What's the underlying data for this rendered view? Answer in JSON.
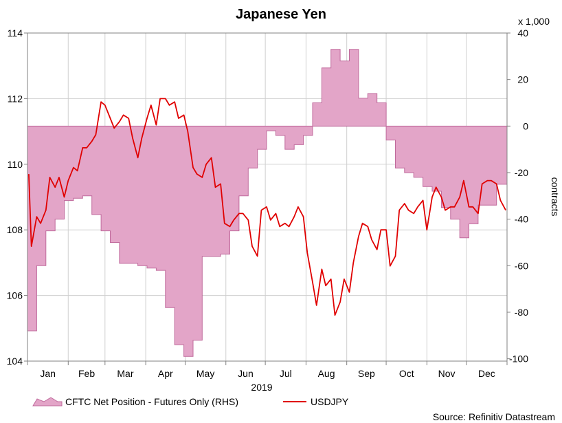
{
  "chart_data": {
    "type": "area+line",
    "title": "Japanese Yen",
    "year_label": "2019",
    "months": [
      "Jan",
      "Feb",
      "Mar",
      "Apr",
      "May",
      "Jun",
      "Jul",
      "Aug",
      "Sep",
      "Oct",
      "Nov",
      "Dec"
    ],
    "left_axis": {
      "ticks": [
        104,
        106,
        108,
        110,
        112,
        114
      ],
      "range": [
        104,
        114
      ]
    },
    "right_axis": {
      "ticks": [
        40,
        20,
        0,
        -20,
        -40,
        -60,
        -80,
        -100
      ],
      "range": [
        -101,
        40
      ],
      "multiplier_label": "x 1,000",
      "label": "contracts"
    },
    "source": "Source: Refinitiv Datastream",
    "grid": true,
    "legend_placement": "bottom",
    "colors": {
      "area_fill": "#e3a5c8",
      "area_stroke": "#c06a9c",
      "line": "#e00000",
      "grid": "#cfcfcf"
    },
    "series": [
      {
        "name": "CFTC Net Position - Futures Only (RHS)",
        "kind": "area",
        "axis": "right",
        "unit_note": "thousands of contracts, weekly",
        "x": [
          "2019-01-01",
          "2019-01-08",
          "2019-01-15",
          "2019-01-22",
          "2019-01-29",
          "2019-02-05",
          "2019-02-12",
          "2019-02-19",
          "2019-02-26",
          "2019-03-05",
          "2019-03-12",
          "2019-03-19",
          "2019-03-26",
          "2019-04-02",
          "2019-04-09",
          "2019-04-16",
          "2019-04-23",
          "2019-04-30",
          "2019-05-07",
          "2019-05-14",
          "2019-05-21",
          "2019-05-28",
          "2019-06-04",
          "2019-06-11",
          "2019-06-18",
          "2019-06-25",
          "2019-07-02",
          "2019-07-09",
          "2019-07-16",
          "2019-07-23",
          "2019-07-30",
          "2019-08-06",
          "2019-08-13",
          "2019-08-20",
          "2019-08-27",
          "2019-09-03",
          "2019-09-10",
          "2019-09-17",
          "2019-09-24",
          "2019-10-01",
          "2019-10-08",
          "2019-10-15",
          "2019-10-22",
          "2019-10-29",
          "2019-11-05",
          "2019-11-12",
          "2019-11-19",
          "2019-11-26",
          "2019-12-03",
          "2019-12-10",
          "2019-12-17",
          "2019-12-24"
        ],
        "values": [
          -88,
          -60,
          -45,
          -40,
          -32,
          -31,
          -30,
          -38,
          -45,
          -50,
          -59,
          -59,
          -60,
          -61,
          -62,
          -78,
          -94,
          -99,
          -92,
          -56,
          -56,
          -55,
          -45,
          -30,
          -18,
          -10,
          -2,
          -4,
          -10,
          -8,
          -4,
          10,
          25,
          33,
          28,
          33,
          12,
          14,
          10,
          -6,
          -18,
          -20,
          -22,
          -26,
          -28,
          -35,
          -40,
          -48,
          -42,
          -34,
          -34,
          -25
        ]
      },
      {
        "name": "USDJPY",
        "kind": "line",
        "axis": "left",
        "unit_note": "daily close",
        "x": [
          "2019-01-02",
          "2019-01-04",
          "2019-01-08",
          "2019-01-11",
          "2019-01-15",
          "2019-01-18",
          "2019-01-22",
          "2019-01-25",
          "2019-01-29",
          "2019-02-01",
          "2019-02-05",
          "2019-02-08",
          "2019-02-12",
          "2019-02-15",
          "2019-02-19",
          "2019-02-22",
          "2019-02-26",
          "2019-03-01",
          "2019-03-05",
          "2019-03-08",
          "2019-03-12",
          "2019-03-15",
          "2019-03-19",
          "2019-03-22",
          "2019-03-26",
          "2019-03-29",
          "2019-04-02",
          "2019-04-05",
          "2019-04-09",
          "2019-04-12",
          "2019-04-16",
          "2019-04-19",
          "2019-04-23",
          "2019-04-26",
          "2019-04-30",
          "2019-05-03",
          "2019-05-07",
          "2019-05-10",
          "2019-05-14",
          "2019-05-17",
          "2019-05-21",
          "2019-05-24",
          "2019-05-28",
          "2019-05-31",
          "2019-06-04",
          "2019-06-07",
          "2019-06-11",
          "2019-06-14",
          "2019-06-18",
          "2019-06-21",
          "2019-06-25",
          "2019-06-28",
          "2019-07-02",
          "2019-07-05",
          "2019-07-09",
          "2019-07-12",
          "2019-07-16",
          "2019-07-19",
          "2019-07-23",
          "2019-07-26",
          "2019-07-30",
          "2019-08-02",
          "2019-08-06",
          "2019-08-09",
          "2019-08-13",
          "2019-08-16",
          "2019-08-20",
          "2019-08-23",
          "2019-08-27",
          "2019-08-30",
          "2019-09-03",
          "2019-09-06",
          "2019-09-10",
          "2019-09-13",
          "2019-09-17",
          "2019-09-20",
          "2019-09-24",
          "2019-09-27",
          "2019-10-01",
          "2019-10-04",
          "2019-10-08",
          "2019-10-11",
          "2019-10-15",
          "2019-10-18",
          "2019-10-22",
          "2019-10-25",
          "2019-10-29",
          "2019-11-01",
          "2019-11-05",
          "2019-11-08",
          "2019-11-12",
          "2019-11-15",
          "2019-11-19",
          "2019-11-22",
          "2019-11-26",
          "2019-11-29",
          "2019-12-03",
          "2019-12-06",
          "2019-12-10",
          "2019-12-13",
          "2019-12-17",
          "2019-12-20",
          "2019-12-24",
          "2019-12-27",
          "2019-12-31"
        ],
        "values": [
          109.7,
          107.5,
          108.4,
          108.2,
          108.6,
          109.6,
          109.3,
          109.6,
          109.0,
          109.5,
          109.9,
          109.8,
          110.5,
          110.5,
          110.7,
          110.9,
          111.9,
          111.8,
          111.4,
          111.1,
          111.3,
          111.5,
          111.4,
          110.8,
          110.2,
          110.8,
          111.4,
          111.8,
          111.2,
          112.0,
          112.0,
          111.8,
          111.9,
          111.4,
          111.5,
          111.0,
          109.9,
          109.7,
          109.6,
          110.0,
          110.2,
          109.3,
          109.4,
          108.2,
          108.1,
          108.3,
          108.5,
          108.5,
          108.3,
          107.5,
          107.2,
          108.6,
          108.7,
          108.3,
          108.5,
          108.1,
          108.2,
          108.1,
          108.4,
          108.7,
          108.4,
          107.3,
          106.4,
          105.7,
          106.8,
          106.3,
          106.5,
          105.4,
          105.8,
          106.5,
          106.1,
          107.0,
          107.8,
          108.2,
          108.1,
          107.7,
          107.4,
          108.0,
          108.0,
          106.9,
          107.2,
          108.6,
          108.8,
          108.6,
          108.5,
          108.7,
          108.9,
          108.0,
          109.0,
          109.3,
          109.0,
          108.6,
          108.7,
          108.7,
          109.0,
          109.5,
          108.7,
          108.7,
          108.5,
          109.4,
          109.5,
          109.5,
          109.4,
          108.9,
          108.6
        ]
      }
    ]
  }
}
